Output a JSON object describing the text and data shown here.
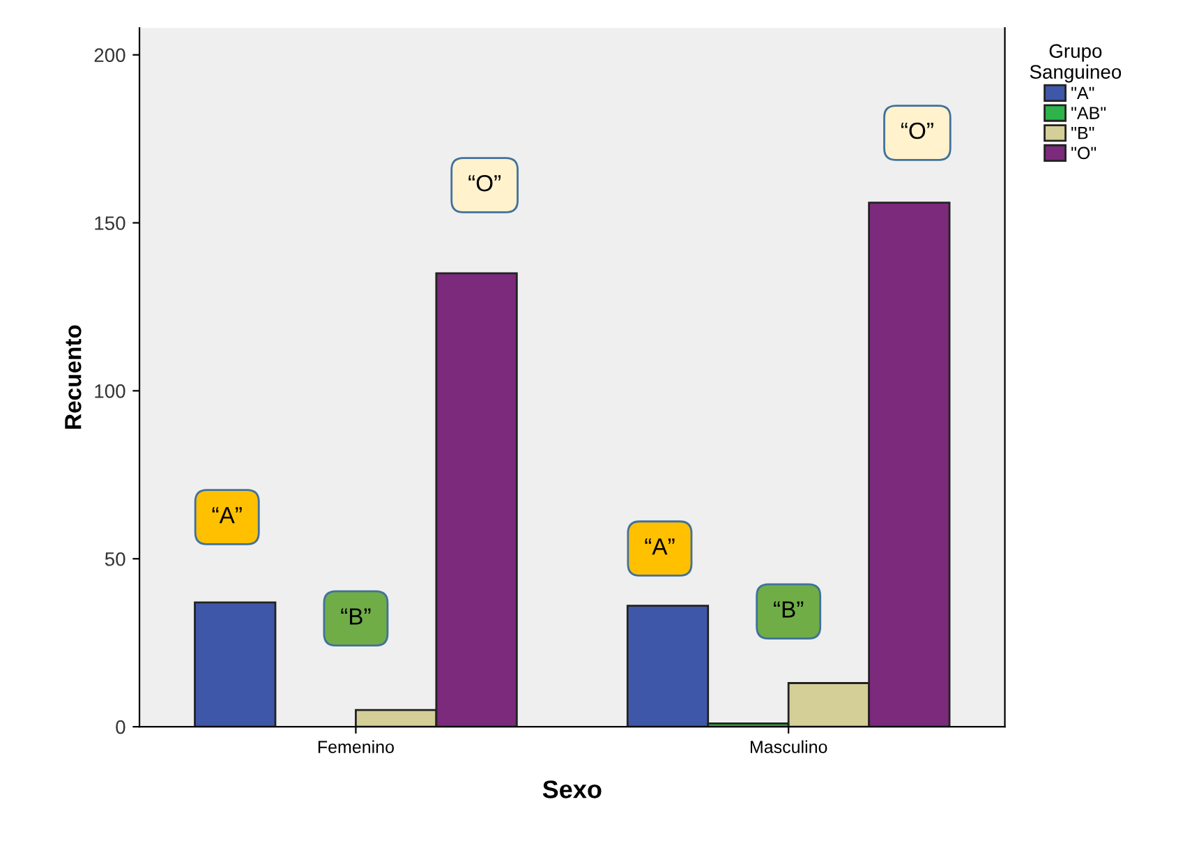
{
  "chart_data": {
    "type": "bar",
    "xlabel": "Sexo",
    "ylabel": "Recuento",
    "legend_title": "Grupo\nSanguineo",
    "legend": "top right",
    "grid": false,
    "categories": [
      "Femenino",
      "Masculino"
    ],
    "series": [
      {
        "name": "\"A\"",
        "color": "#3f57a8",
        "values": [
          37,
          36
        ]
      },
      {
        "name": "\"AB\"",
        "color": "#2db34a",
        "values": [
          null,
          1
        ]
      },
      {
        "name": "\"B\"",
        "color": "#d4cf97",
        "values": [
          5,
          13
        ]
      },
      {
        "name": "\"O\"",
        "color": "#7b2a7c",
        "values": [
          135,
          156
        ]
      }
    ],
    "ylim": [
      0,
      208
    ],
    "yticks": [
      0,
      50,
      100,
      150,
      200
    ],
    "annotations": [
      "“A”",
      "“B”",
      "“O”",
      "“A”",
      "“B”",
      "“O”"
    ]
  }
}
